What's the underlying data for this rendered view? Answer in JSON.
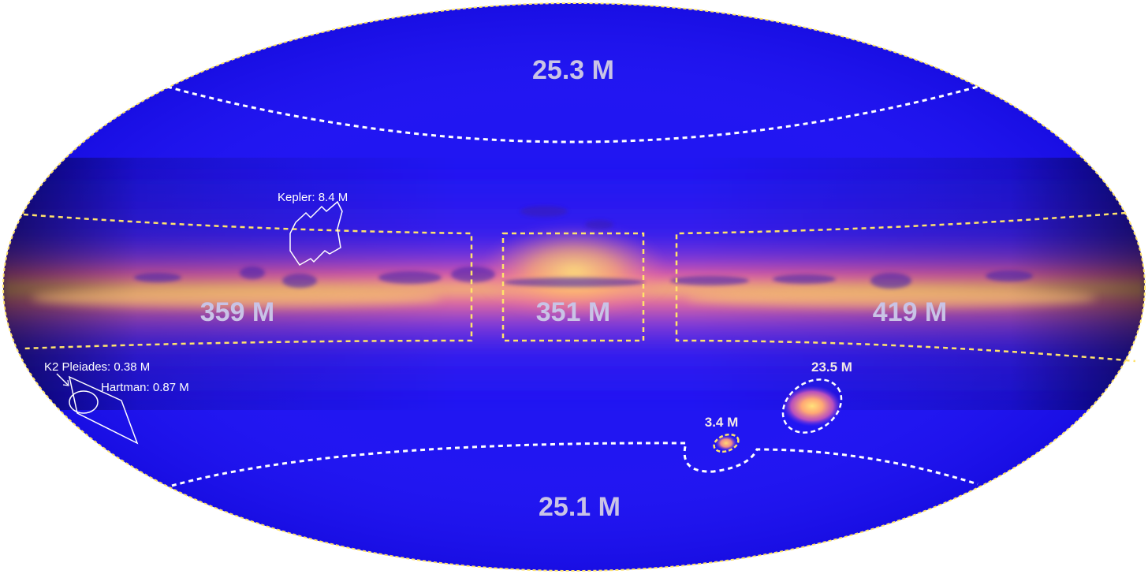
{
  "regions": {
    "north_cap": "25.3 M",
    "south_cap": "25.1 M",
    "plane_left": "359 M",
    "plane_center": "351 M",
    "plane_right": "419 M",
    "lmc": "23.5 M",
    "smc": "3.4 M"
  },
  "fields": {
    "kepler": "Kepler: 8.4 M",
    "k2_pleiades": "K2 Pleiades: 0.38 M",
    "hartman": "Hartman: 0.87 M"
  },
  "colors": {
    "background_sky": "#1f14f2",
    "plane_glow": "#f06aa8",
    "plane_core": "#ffd86a",
    "boundary_dashes": "#ffe36b",
    "cap_dashes": "#ffffff",
    "count_text": "#c9c3e6"
  }
}
